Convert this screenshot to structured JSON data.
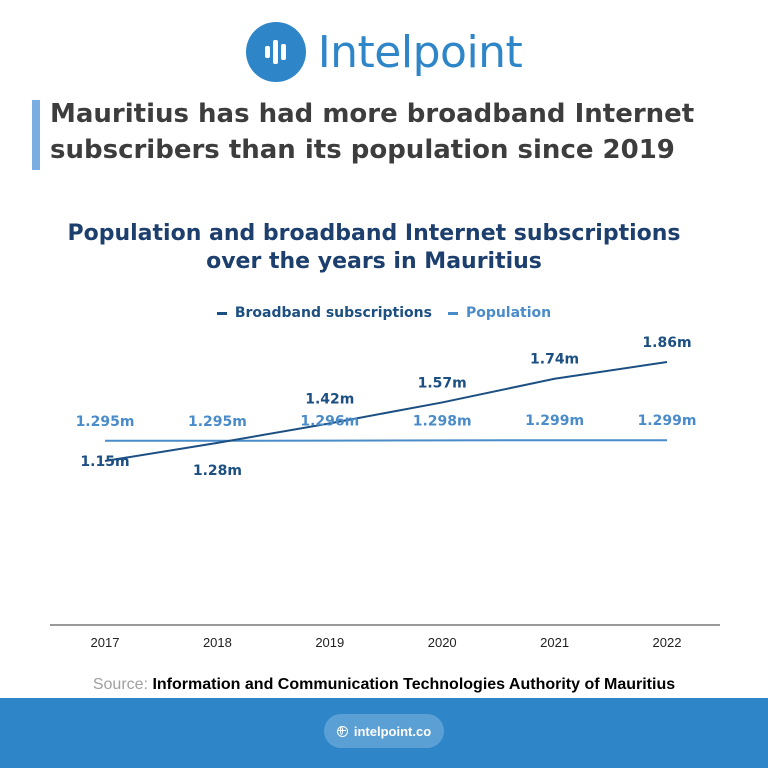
{
  "brand": {
    "name": "Intelpoint",
    "color": "#2e86c8"
  },
  "headline": "Mauritius has had more broadband Internet subscribers than its population since 2019",
  "chart_data": {
    "type": "line",
    "title": "Population and broadband Internet subscriptions over the years in Mauritius",
    "x": [
      "2017",
      "2018",
      "2019",
      "2020",
      "2021",
      "2022"
    ],
    "series": [
      {
        "name": "Broadband subscriptions",
        "color": "#1c4f82",
        "values": [
          1.15,
          1.28,
          1.42,
          1.57,
          1.74,
          1.86
        ],
        "labels": [
          "1.15m",
          "1.28m",
          "1.42m",
          "1.57m",
          "1.74m",
          "1.86m"
        ]
      },
      {
        "name": "Population",
        "color": "#4a8cc9",
        "values": [
          1.295,
          1.295,
          1.296,
          1.298,
          1.299,
          1.299
        ],
        "labels": [
          "1.295m",
          "1.295m",
          "1.296m",
          "1.298m",
          "1.299m",
          "1.299m"
        ]
      }
    ],
    "xlabel": "",
    "ylabel": "",
    "legend": "top-center",
    "grid": false
  },
  "source": {
    "label": "Source:",
    "value": "Information and Communication Technologies Authority of Mauritius"
  },
  "footer": {
    "url": "intelpoint.co",
    "icon": "globe-icon",
    "color": "#2e86c8"
  }
}
